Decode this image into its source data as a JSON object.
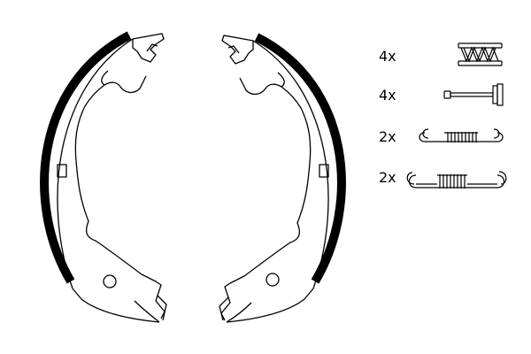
{
  "parts_list": {
    "items": [
      {
        "quantity": "4x",
        "icon": "compression-spring-icon"
      },
      {
        "quantity": "4x",
        "icon": "retaining-pin-icon"
      },
      {
        "quantity": "2x",
        "icon": "hook-spring-short-icon"
      },
      {
        "quantity": "2x",
        "icon": "hook-spring-long-icon"
      }
    ]
  },
  "colors": {
    "line": "#000000",
    "background": "#ffffff",
    "lining": "#000000"
  }
}
